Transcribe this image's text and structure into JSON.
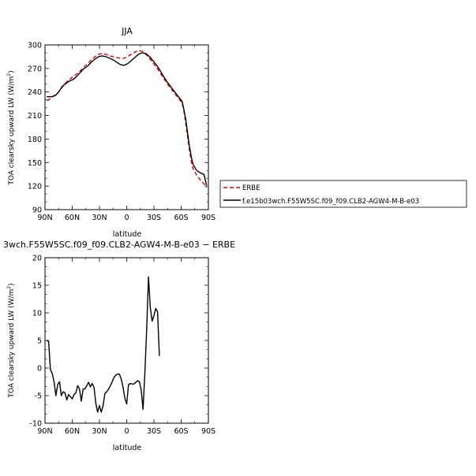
{
  "chart_data": [
    {
      "type": "line",
      "title": "JJA",
      "xlabel": "latitude",
      "ylabel": "TOA clearsky upward LW",
      "yunits": "(W/m²)",
      "xlim": [
        90,
        -90
      ],
      "ylim": [
        90,
        300
      ],
      "x_ticks": [
        {
          "value": 90,
          "label": "90N"
        },
        {
          "value": 60,
          "label": "60N"
        },
        {
          "value": 30,
          "label": "30N"
        },
        {
          "value": 0,
          "label": "0"
        },
        {
          "value": -30,
          "label": "30S"
        },
        {
          "value": -60,
          "label": "60S"
        },
        {
          "value": -90,
          "label": "90S"
        }
      ],
      "y_ticks": [
        90,
        120,
        150,
        180,
        210,
        240,
        270,
        300
      ],
      "legend": {
        "placement": "right"
      },
      "series": [
        {
          "name": "ERBE",
          "color": "#e00000",
          "dash": true,
          "points": [
            [
              88,
              229
            ],
            [
              86,
              230
            ],
            [
              82,
              234
            ],
            [
              78,
              237
            ],
            [
              75,
              240
            ],
            [
              71,
              246
            ],
            [
              67,
              252
            ],
            [
              63,
              256
            ],
            [
              59,
              260
            ],
            [
              55,
              263
            ],
            [
              51,
              267
            ],
            [
              47,
              272
            ],
            [
              43,
              276
            ],
            [
              39,
              281
            ],
            [
              35,
              285
            ],
            [
              31,
              288
            ],
            [
              27,
              289
            ],
            [
              23,
              288
            ],
            [
              19,
              286
            ],
            [
              15,
              285
            ],
            [
              11,
              284
            ],
            [
              7,
              283
            ],
            [
              3,
              283
            ],
            [
              -1,
              285
            ],
            [
              -5,
              288
            ],
            [
              -9,
              291
            ],
            [
              -13,
              293
            ],
            [
              -17,
              292
            ],
            [
              -21,
              288
            ],
            [
              -25,
              283
            ],
            [
              -29,
              277
            ],
            [
              -33,
              271
            ],
            [
              -37,
              264
            ],
            [
              -41,
              257
            ],
            [
              -45,
              250
            ],
            [
              -49,
              244
            ],
            [
              -53,
              238
            ],
            [
              -57,
              232
            ],
            [
              -61,
              226
            ],
            [
              -63,
              216
            ],
            [
              -65,
              200
            ],
            [
              -67,
              183
            ],
            [
              -69,
              167
            ],
            [
              -71,
              152
            ],
            [
              -73,
              143
            ],
            [
              -77,
              134
            ],
            [
              -81,
              128
            ],
            [
              -85,
              123
            ],
            [
              -88,
              118
            ]
          ]
        },
        {
          "name": "f.e15b03wch.F55W5SC.f09_f09.CLB2-AGW4-M-B-e03",
          "color": "#000000",
          "dash": false,
          "points": [
            [
              88,
              234
            ],
            [
              86,
              234
            ],
            [
              82,
              234
            ],
            [
              78,
              236
            ],
            [
              75,
              240
            ],
            [
              71,
              247
            ],
            [
              67,
              251
            ],
            [
              63,
              254
            ],
            [
              59,
              256
            ],
            [
              55,
              260
            ],
            [
              51,
              265
            ],
            [
              47,
              270
            ],
            [
              43,
              273
            ],
            [
              39,
              278
            ],
            [
              35,
              282
            ],
            [
              31,
              285
            ],
            [
              27,
              286
            ],
            [
              23,
              285
            ],
            [
              19,
              283
            ],
            [
              15,
              281
            ],
            [
              11,
              278
            ],
            [
              7,
              275
            ],
            [
              3,
              274
            ],
            [
              -1,
              276
            ],
            [
              -5,
              280
            ],
            [
              -9,
              284
            ],
            [
              -13,
              288
            ],
            [
              -17,
              290
            ],
            [
              -21,
              289
            ],
            [
              -25,
              285
            ],
            [
              -29,
              280
            ],
            [
              -33,
              274
            ],
            [
              -37,
              267
            ],
            [
              -41,
              259
            ],
            [
              -45,
              252
            ],
            [
              -49,
              246
            ],
            [
              -53,
              240
            ],
            [
              -57,
              234
            ],
            [
              -61,
              228
            ],
            [
              -63,
              218
            ],
            [
              -65,
              205
            ],
            [
              -67,
              188
            ],
            [
              -69,
              172
            ],
            [
              -71,
              158
            ],
            [
              -73,
              148
            ],
            [
              -77,
              140
            ],
            [
              -81,
              137
            ],
            [
              -85,
              135
            ],
            [
              -88,
              121
            ]
          ]
        }
      ]
    },
    {
      "type": "line",
      "title": "3wch.F55W5SC.f09_f09.CLB2-AGW4-M-B-e03 − ERBE",
      "xlabel": "latitude",
      "ylabel": "TOA clearsky upward LW",
      "yunits": "(W/m²)",
      "xlim": [
        90,
        -90
      ],
      "ylim": [
        -10,
        20
      ],
      "x_ticks": [
        {
          "value": 90,
          "label": "90N"
        },
        {
          "value": 60,
          "label": "60N"
        },
        {
          "value": 30,
          "label": "30N"
        },
        {
          "value": 0,
          "label": "0"
        },
        {
          "value": -30,
          "label": "30S"
        },
        {
          "value": -60,
          "label": "60S"
        },
        {
          "value": -90,
          "label": "90S"
        }
      ],
      "y_ticks": [
        -10,
        -5,
        0,
        5,
        10,
        15,
        20
      ],
      "series": [
        {
          "color": "#000000",
          "dash": false,
          "points": [
            [
              88,
              5.0
            ],
            [
              86,
              4.8
            ],
            [
              84,
              -0.3
            ],
            [
              82,
              -1.0
            ],
            [
              80,
              -2.5
            ],
            [
              78,
              -5.0
            ],
            [
              76,
              -3.0
            ],
            [
              74,
              -2.5
            ],
            [
              72,
              -5.0
            ],
            [
              70,
              -4.3
            ],
            [
              68,
              -4.5
            ],
            [
              66,
              -5.8
            ],
            [
              64,
              -4.8
            ],
            [
              62,
              -5.2
            ],
            [
              60,
              -5.6
            ],
            [
              58,
              -4.8
            ],
            [
              56,
              -4.5
            ],
            [
              54,
              -3.2
            ],
            [
              52,
              -3.8
            ],
            [
              50,
              -6.0
            ],
            [
              48,
              -3.8
            ],
            [
              46,
              -3.8
            ],
            [
              44,
              -3.2
            ],
            [
              42,
              -2.6
            ],
            [
              40,
              -3.4
            ],
            [
              38,
              -2.8
            ],
            [
              36,
              -3.5
            ],
            [
              34,
              -6.4
            ],
            [
              32,
              -8.0
            ],
            [
              30,
              -6.8
            ],
            [
              28,
              -8.0
            ],
            [
              26,
              -6.8
            ],
            [
              24,
              -4.6
            ],
            [
              22,
              -4.3
            ],
            [
              20,
              -3.8
            ],
            [
              18,
              -3.2
            ],
            [
              16,
              -2.5
            ],
            [
              14,
              -1.7
            ],
            [
              12,
              -1.3
            ],
            [
              10,
              -1.1
            ],
            [
              8,
              -1.1
            ],
            [
              6,
              -2.0
            ],
            [
              4,
              -3.5
            ],
            [
              2,
              -5.5
            ],
            [
              0,
              -6.5
            ],
            [
              -2,
              -3.0
            ],
            [
              -4,
              -2.8
            ],
            [
              -6,
              -2.9
            ],
            [
              -8,
              -2.9
            ],
            [
              -10,
              -2.6
            ],
            [
              -12,
              -2.3
            ],
            [
              -14,
              -2.5
            ],
            [
              -16,
              -4.0
            ],
            [
              -18,
              -7.5
            ],
            [
              -20,
              -1.0
            ],
            [
              -22,
              7.0
            ],
            [
              -24,
              16.5
            ],
            [
              -26,
              11.0
            ],
            [
              -28,
              8.5
            ],
            [
              -30,
              9.5
            ],
            [
              -32,
              10.8
            ],
            [
              -34,
              10.2
            ],
            [
              -36,
              2.2
            ]
          ]
        }
      ]
    }
  ]
}
